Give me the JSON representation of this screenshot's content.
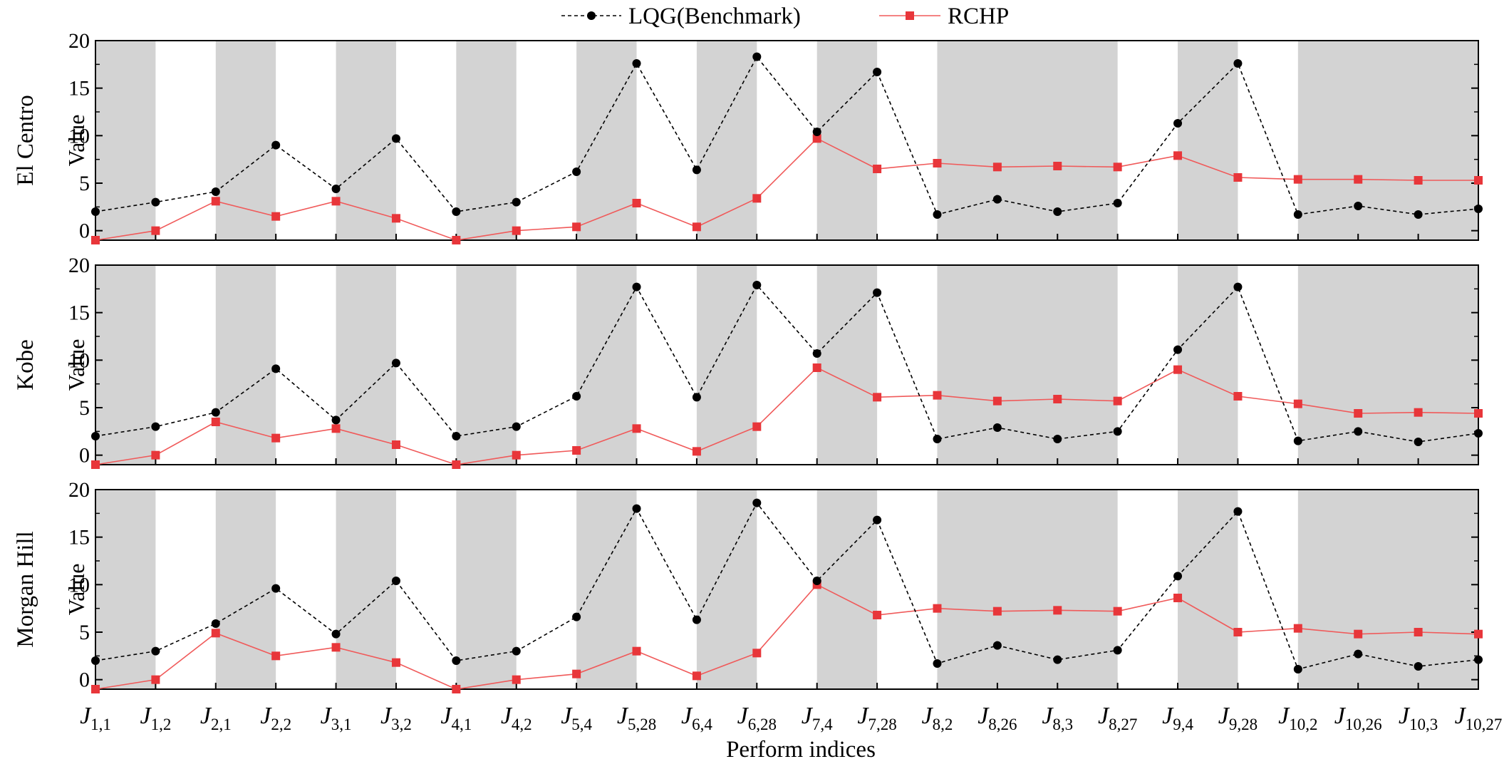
{
  "chart_data": {
    "type": "line",
    "xlabel": "Perform indices",
    "ylabel": "Value",
    "ylim": [
      -1,
      20
    ],
    "yticks": [
      0,
      5,
      10,
      15,
      20
    ],
    "legend": {
      "placement": "top-center",
      "entries": [
        "LQG(Benchmark)",
        "RCHP"
      ]
    },
    "x_categories": [
      {
        "main": "J",
        "sub": "1,1"
      },
      {
        "main": "J",
        "sub": "1,2"
      },
      {
        "main": "J",
        "sub": "2,1"
      },
      {
        "main": "J",
        "sub": "2,2"
      },
      {
        "main": "J",
        "sub": "3,1"
      },
      {
        "main": "J",
        "sub": "3,2"
      },
      {
        "main": "J",
        "sub": "4,1"
      },
      {
        "main": "J",
        "sub": "4,2"
      },
      {
        "main": "J",
        "sub": "5,4"
      },
      {
        "main": "J",
        "sub": "5,28"
      },
      {
        "main": "J",
        "sub": "6,4"
      },
      {
        "main": "J",
        "sub": "6,28"
      },
      {
        "main": "J",
        "sub": "7,4"
      },
      {
        "main": "J",
        "sub": "7,28"
      },
      {
        "main": "J",
        "sub": "8,2"
      },
      {
        "main": "J",
        "sub": "8,26"
      },
      {
        "main": "J",
        "sub": "8,3"
      },
      {
        "main": "J",
        "sub": "8,27"
      },
      {
        "main": "J",
        "sub": "9,4"
      },
      {
        "main": "J",
        "sub": "9,28"
      },
      {
        "main": "J",
        "sub": "10,2"
      },
      {
        "main": "J",
        "sub": "10,26"
      },
      {
        "main": "J",
        "sub": "10,3"
      },
      {
        "main": "J",
        "sub": "10,27"
      }
    ],
    "shaded_bands": [
      [
        0,
        1
      ],
      [
        2,
        3
      ],
      [
        4,
        5
      ],
      [
        6,
        7
      ],
      [
        8,
        9
      ],
      [
        10,
        11
      ],
      [
        12,
        13
      ],
      [
        14,
        17
      ],
      [
        18,
        19
      ],
      [
        20,
        23
      ]
    ],
    "colors": {
      "lqg": "#000000",
      "rchp": "#f05a5a",
      "rchp_marker": "#e8363a",
      "band": "#d3d3d3"
    },
    "panels": [
      {
        "label": "El Centro",
        "series": [
          {
            "name": "LQG(Benchmark)",
            "values": [
              2.0,
              3.0,
              4.1,
              9.0,
              4.4,
              9.7,
              2.0,
              3.0,
              6.2,
              17.6,
              6.4,
              18.3,
              10.4,
              16.7,
              1.7,
              3.3,
              2.0,
              2.9,
              11.3,
              17.6,
              1.7,
              2.6,
              1.7,
              2.3
            ]
          },
          {
            "name": "RCHP",
            "values": [
              -1.0,
              0.0,
              3.1,
              1.5,
              3.1,
              1.3,
              -1.0,
              0.0,
              0.4,
              2.9,
              0.4,
              3.4,
              9.7,
              6.5,
              7.1,
              6.7,
              6.8,
              6.7,
              7.9,
              5.6,
              5.4,
              5.4,
              5.3,
              5.3
            ]
          }
        ]
      },
      {
        "label": "Kobe",
        "series": [
          {
            "name": "LQG(Benchmark)",
            "values": [
              2.0,
              3.0,
              4.5,
              9.1,
              3.7,
              9.7,
              2.0,
              3.0,
              6.2,
              17.7,
              6.1,
              17.9,
              10.7,
              17.1,
              1.7,
              2.9,
              1.7,
              2.5,
              11.1,
              17.7,
              1.5,
              2.5,
              1.4,
              2.3
            ]
          },
          {
            "name": "RCHP",
            "values": [
              -1.0,
              0.0,
              3.5,
              1.8,
              2.8,
              1.1,
              -1.0,
              0.0,
              0.5,
              2.8,
              0.4,
              3.0,
              9.2,
              6.1,
              6.3,
              5.7,
              5.9,
              5.7,
              9.0,
              6.2,
              5.4,
              4.4,
              4.5,
              4.4
            ]
          }
        ]
      },
      {
        "label": "Morgan Hill",
        "series": [
          {
            "name": "LQG(Benchmark)",
            "values": [
              2.0,
              3.0,
              5.9,
              9.6,
              4.8,
              10.4,
              2.0,
              3.0,
              6.6,
              18.0,
              6.3,
              18.6,
              10.4,
              16.8,
              1.7,
              3.6,
              2.1,
              3.1,
              10.9,
              17.7,
              1.1,
              2.7,
              1.4,
              2.1
            ]
          },
          {
            "name": "RCHP",
            "values": [
              -1.0,
              0.0,
              4.9,
              2.5,
              3.4,
              1.8,
              -1.0,
              0.0,
              0.6,
              3.0,
              0.4,
              2.8,
              10.0,
              6.8,
              7.5,
              7.2,
              7.3,
              7.2,
              8.6,
              5.0,
              5.4,
              4.8,
              5.0,
              4.8
            ]
          }
        ]
      }
    ]
  }
}
